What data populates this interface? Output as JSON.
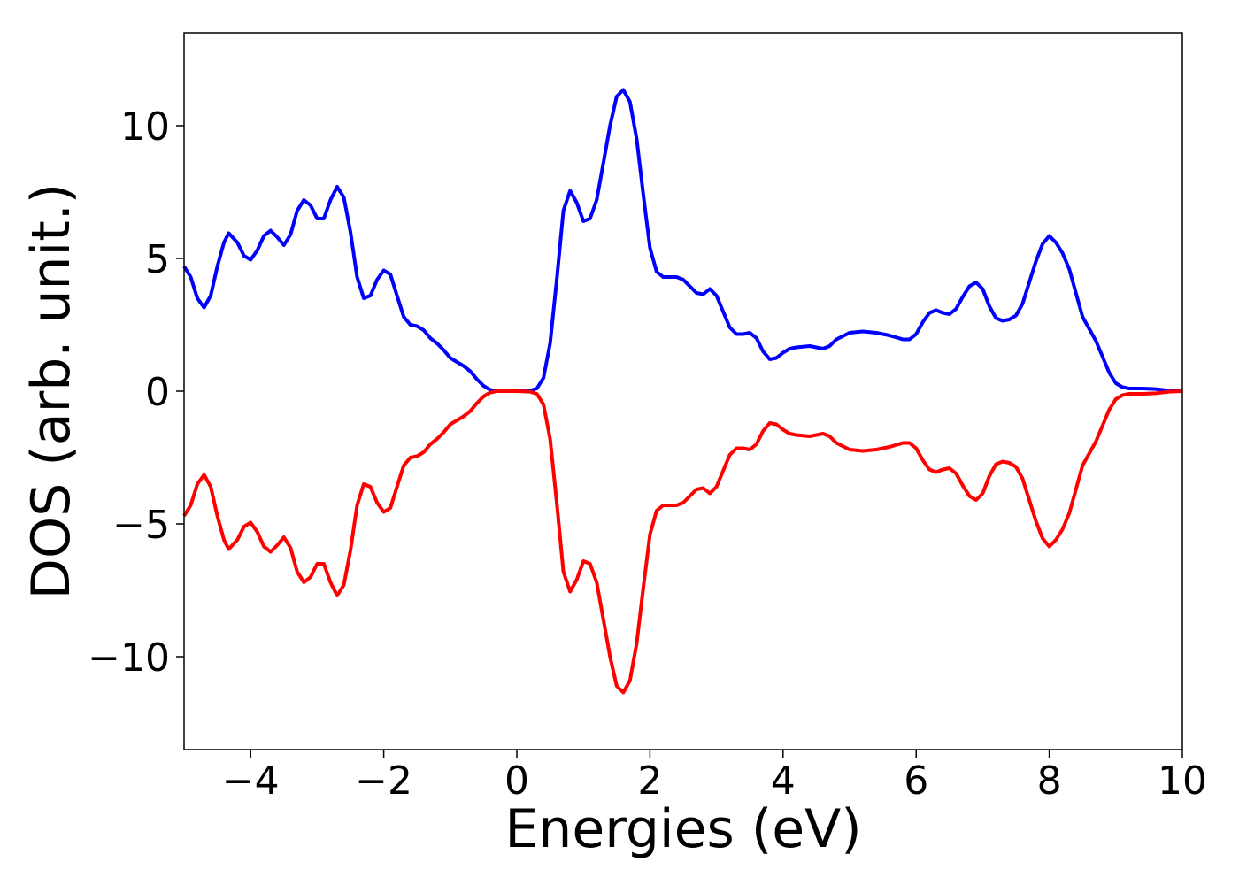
{
  "chart_data": {
    "type": "line",
    "xlabel": "Energies (eV)",
    "ylabel": "DOS (arb. unit.)",
    "xlim": [
      -5,
      10
    ],
    "ylim": [
      -13.5,
      13.5
    ],
    "xticks": [
      -4,
      -2,
      0,
      2,
      4,
      6,
      8,
      10
    ],
    "xtick_labels": [
      "−4",
      "−2",
      "0",
      "2",
      "4",
      "6",
      "8",
      "10"
    ],
    "yticks": [
      10,
      5,
      0,
      -5,
      -10
    ],
    "ytick_labels": [
      "10",
      "5",
      "0",
      "−5",
      "−10"
    ],
    "grid": false,
    "series": [
      {
        "color": "#0000ff",
        "points": [
          [
            -5.0,
            4.7
          ],
          [
            -4.9,
            4.3
          ],
          [
            -4.8,
            3.5
          ],
          [
            -4.7,
            3.15
          ],
          [
            -4.6,
            3.6
          ],
          [
            -4.5,
            4.7
          ],
          [
            -4.4,
            5.6
          ],
          [
            -4.33,
            5.95
          ],
          [
            -4.2,
            5.6
          ],
          [
            -4.1,
            5.1
          ],
          [
            -4.0,
            4.95
          ],
          [
            -3.9,
            5.3
          ],
          [
            -3.8,
            5.85
          ],
          [
            -3.7,
            6.05
          ],
          [
            -3.6,
            5.8
          ],
          [
            -3.5,
            5.5
          ],
          [
            -3.4,
            5.9
          ],
          [
            -3.3,
            6.8
          ],
          [
            -3.2,
            7.2
          ],
          [
            -3.1,
            7.0
          ],
          [
            -3.0,
            6.5
          ],
          [
            -2.9,
            6.5
          ],
          [
            -2.8,
            7.2
          ],
          [
            -2.7,
            7.7
          ],
          [
            -2.6,
            7.3
          ],
          [
            -2.5,
            6.0
          ],
          [
            -2.4,
            4.3
          ],
          [
            -2.3,
            3.5
          ],
          [
            -2.2,
            3.6
          ],
          [
            -2.1,
            4.2
          ],
          [
            -2.0,
            4.55
          ],
          [
            -1.9,
            4.4
          ],
          [
            -1.8,
            3.6
          ],
          [
            -1.7,
            2.8
          ],
          [
            -1.6,
            2.5
          ],
          [
            -1.5,
            2.45
          ],
          [
            -1.4,
            2.3
          ],
          [
            -1.3,
            2.0
          ],
          [
            -1.2,
            1.8
          ],
          [
            -1.1,
            1.55
          ],
          [
            -1.0,
            1.25
          ],
          [
            -0.9,
            1.1
          ],
          [
            -0.8,
            0.95
          ],
          [
            -0.7,
            0.75
          ],
          [
            -0.6,
            0.45
          ],
          [
            -0.5,
            0.2
          ],
          [
            -0.4,
            0.05
          ],
          [
            -0.3,
            0.0
          ],
          [
            0.0,
            0.0
          ],
          [
            0.2,
            0.02
          ],
          [
            0.3,
            0.1
          ],
          [
            0.4,
            0.5
          ],
          [
            0.5,
            1.8
          ],
          [
            0.6,
            4.2
          ],
          [
            0.7,
            6.8
          ],
          [
            0.8,
            7.55
          ],
          [
            0.9,
            7.1
          ],
          [
            1.0,
            6.4
          ],
          [
            1.1,
            6.5
          ],
          [
            1.2,
            7.2
          ],
          [
            1.3,
            8.6
          ],
          [
            1.4,
            10.0
          ],
          [
            1.5,
            11.1
          ],
          [
            1.6,
            11.35
          ],
          [
            1.7,
            10.9
          ],
          [
            1.8,
            9.5
          ],
          [
            1.9,
            7.4
          ],
          [
            2.0,
            5.4
          ],
          [
            2.1,
            4.5
          ],
          [
            2.2,
            4.3
          ],
          [
            2.3,
            4.3
          ],
          [
            2.4,
            4.3
          ],
          [
            2.5,
            4.2
          ],
          [
            2.6,
            3.95
          ],
          [
            2.7,
            3.7
          ],
          [
            2.8,
            3.65
          ],
          [
            2.9,
            3.85
          ],
          [
            3.0,
            3.6
          ],
          [
            3.1,
            3.0
          ],
          [
            3.2,
            2.4
          ],
          [
            3.3,
            2.15
          ],
          [
            3.4,
            2.15
          ],
          [
            3.5,
            2.2
          ],
          [
            3.6,
            2.0
          ],
          [
            3.7,
            1.5
          ],
          [
            3.8,
            1.2
          ],
          [
            3.9,
            1.25
          ],
          [
            4.0,
            1.45
          ],
          [
            4.1,
            1.6
          ],
          [
            4.2,
            1.65
          ],
          [
            4.4,
            1.7
          ],
          [
            4.5,
            1.65
          ],
          [
            4.6,
            1.6
          ],
          [
            4.7,
            1.7
          ],
          [
            4.8,
            1.95
          ],
          [
            5.0,
            2.2
          ],
          [
            5.2,
            2.25
          ],
          [
            5.4,
            2.2
          ],
          [
            5.6,
            2.1
          ],
          [
            5.8,
            1.95
          ],
          [
            5.9,
            1.95
          ],
          [
            6.0,
            2.15
          ],
          [
            6.1,
            2.6
          ],
          [
            6.2,
            2.95
          ],
          [
            6.3,
            3.05
          ],
          [
            6.4,
            2.95
          ],
          [
            6.5,
            2.9
          ],
          [
            6.6,
            3.1
          ],
          [
            6.7,
            3.55
          ],
          [
            6.8,
            3.95
          ],
          [
            6.9,
            4.1
          ],
          [
            7.0,
            3.85
          ],
          [
            7.1,
            3.2
          ],
          [
            7.2,
            2.75
          ],
          [
            7.3,
            2.65
          ],
          [
            7.4,
            2.7
          ],
          [
            7.5,
            2.85
          ],
          [
            7.6,
            3.3
          ],
          [
            7.7,
            4.1
          ],
          [
            7.8,
            4.9
          ],
          [
            7.9,
            5.55
          ],
          [
            8.0,
            5.85
          ],
          [
            8.1,
            5.6
          ],
          [
            8.2,
            5.2
          ],
          [
            8.3,
            4.6
          ],
          [
            8.4,
            3.7
          ],
          [
            8.5,
            2.8
          ],
          [
            8.6,
            2.35
          ],
          [
            8.7,
            1.9
          ],
          [
            8.8,
            1.3
          ],
          [
            8.9,
            0.7
          ],
          [
            9.0,
            0.3
          ],
          [
            9.1,
            0.15
          ],
          [
            9.2,
            0.1
          ],
          [
            9.4,
            0.1
          ],
          [
            9.6,
            0.08
          ],
          [
            9.8,
            0.02
          ],
          [
            10.0,
            0.0
          ]
        ]
      },
      {
        "color": "#ff0000",
        "mirror_of": 0
      }
    ]
  }
}
